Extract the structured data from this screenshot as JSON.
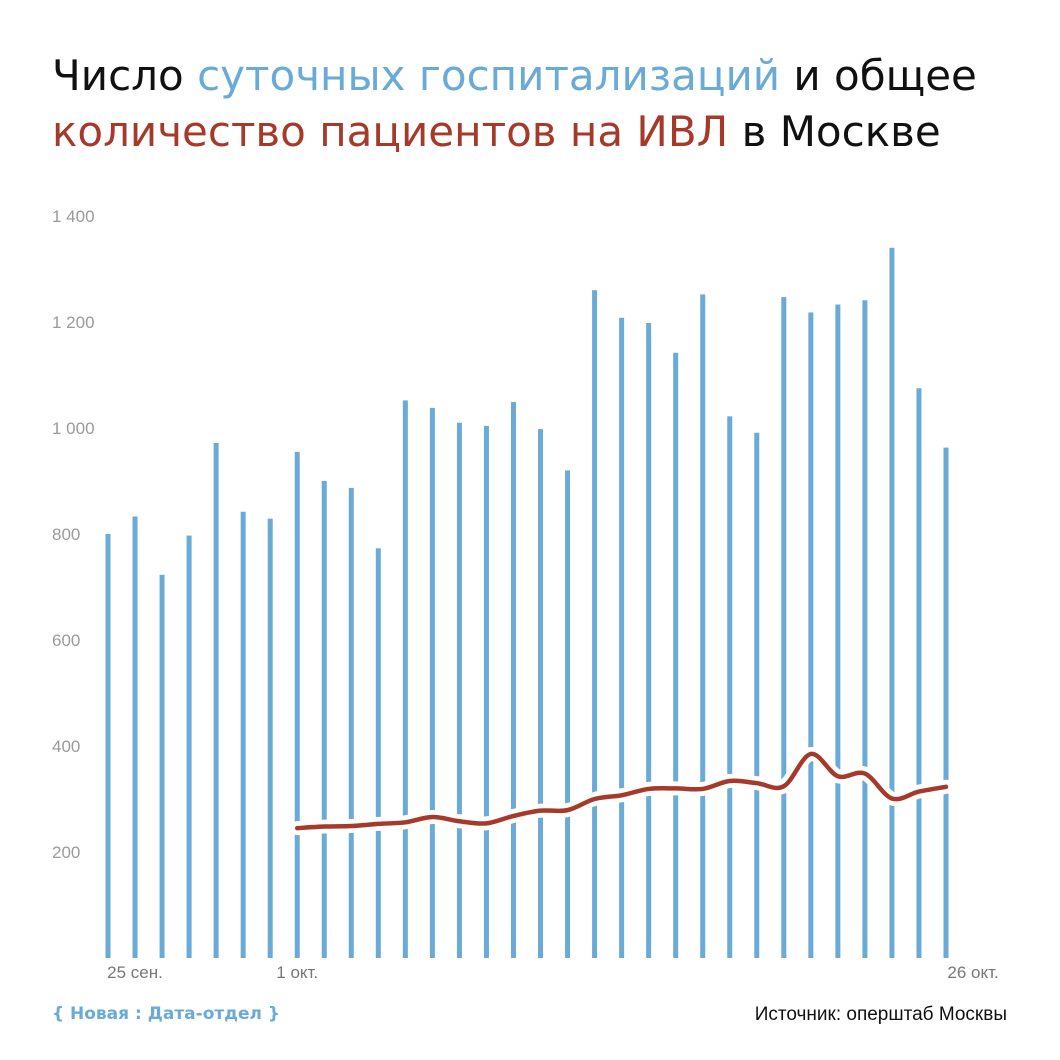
{
  "title": {
    "part1": "Число ",
    "part2": "суточных госпитализаций",
    "part3": " и общее ",
    "part4": "количество пациентов на ИВЛ",
    "part5": " в Москве"
  },
  "footer": {
    "brand": "{ Новая : Дата-отдел }",
    "source": "Источник: оперштаб Москвы"
  },
  "chart_data": {
    "type": "bar",
    "title": "Число суточных госпитализаций и общее количество пациентов на ИВЛ в Москве",
    "colors": {
      "hospitalizations": "#6aaad6",
      "ventilators": "#a63a2a"
    },
    "ylim": [
      0,
      1400
    ],
    "yticks": [
      {
        "value": 200,
        "label": "200"
      },
      {
        "value": 400,
        "label": "400"
      },
      {
        "value": 600,
        "label": "600"
      },
      {
        "value": 800,
        "label": "800"
      },
      {
        "value": 1000,
        "label": "1 000"
      },
      {
        "value": 1200,
        "label": "1 200"
      },
      {
        "value": 1400,
        "label": "1 400"
      }
    ],
    "xticks": [
      {
        "index": 1,
        "label": "25 сен."
      },
      {
        "index": 7,
        "label": "1 окт."
      },
      {
        "index": 32,
        "label": "26 окт."
      }
    ],
    "grid": false,
    "legend": "none",
    "series": [
      {
        "type": "bar",
        "values": [
          800,
          833,
          723,
          797,
          972,
          842,
          829,
          955,
          900,
          887,
          773,
          1052,
          1038,
          1010,
          1004,
          1049,
          998,
          920,
          1260,
          1208,
          1198,
          1142,
          1252,
          1022,
          991,
          1247,
          1218,
          1233,
          1241,
          1340,
          1075,
          963
        ]
      },
      {
        "type": "line",
        "values": [
          null,
          null,
          null,
          null,
          null,
          null,
          null,
          245,
          248,
          249,
          253,
          256,
          266,
          258,
          254,
          268,
          278,
          279,
          300,
          307,
          319,
          320,
          319,
          334,
          330,
          324,
          385,
          343,
          348,
          301,
          314,
          323
        ]
      }
    ]
  }
}
